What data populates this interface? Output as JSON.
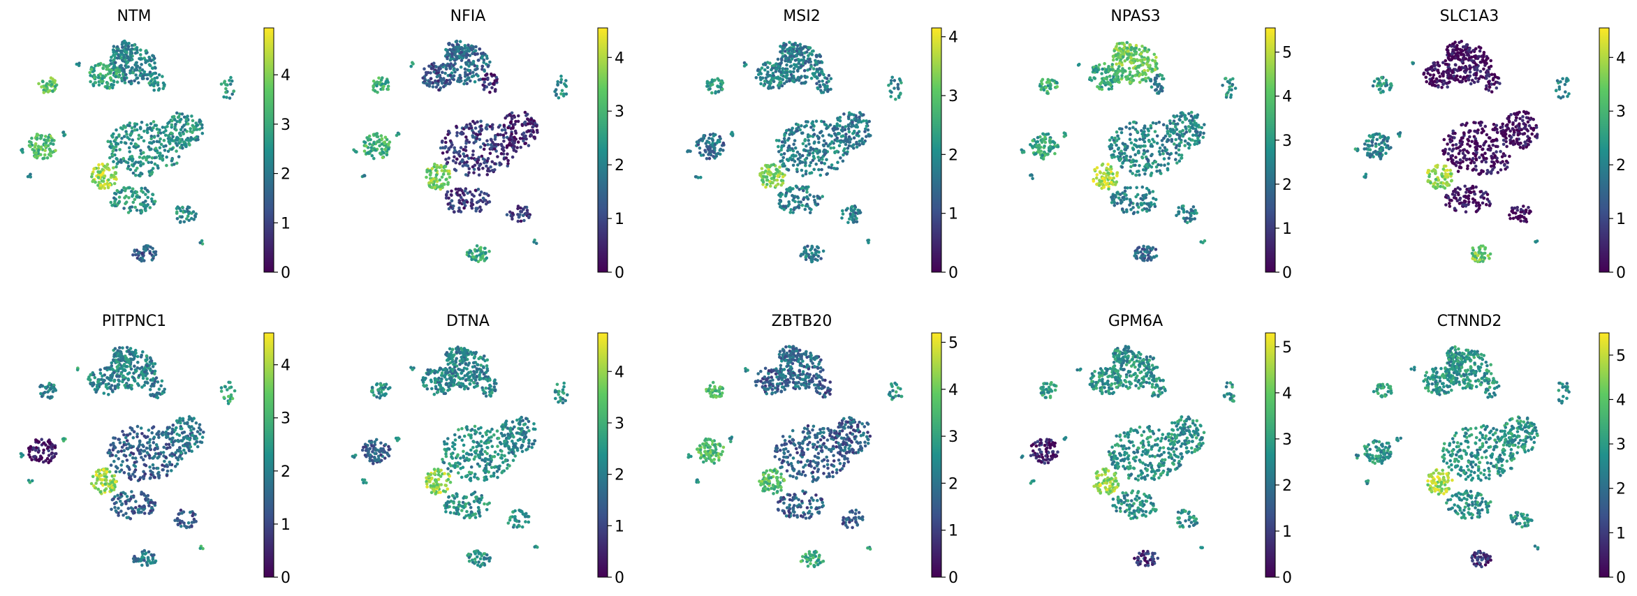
{
  "figure": {
    "panel_count": 10,
    "rows": 2,
    "cols": 5,
    "colormap": [
      "#440154",
      "#3b528b",
      "#21918c",
      "#5ec962",
      "#fde725"
    ]
  },
  "chart_data": [
    {
      "type": "scatter",
      "title": "NTM",
      "colorbar": {
        "min": 0,
        "max": 4.95,
        "ticks": [
          0,
          1,
          2,
          3,
          4
        ]
      },
      "cluster_levels": {
        "big_top": 0.45,
        "top_left": 0.6,
        "top_right": 0.5,
        "island_a": 0.72,
        "island_b": 0.7,
        "island_c": 0.85,
        "main": 0.5,
        "bottom": 0.3,
        "small": 0.5
      }
    },
    {
      "type": "scatter",
      "title": "NFIA",
      "colorbar": {
        "min": 0,
        "max": 4.55,
        "ticks": [
          0,
          1,
          2,
          3,
          4
        ]
      },
      "cluster_levels": {
        "big_top": 0.35,
        "top_left": 0.25,
        "top_right": 0.12,
        "island_a": 0.62,
        "island_b": 0.65,
        "island_c": 0.78,
        "main": 0.18,
        "bottom": 0.6,
        "small": 0.5
      }
    },
    {
      "type": "scatter",
      "title": "MSI2",
      "colorbar": {
        "min": 0,
        "max": 4.15,
        "ticks": [
          0,
          1,
          2,
          3,
          4
        ]
      },
      "cluster_levels": {
        "big_top": 0.42,
        "top_left": 0.45,
        "top_right": 0.4,
        "island_a": 0.5,
        "island_b": 0.35,
        "island_c": 0.8,
        "main": 0.42,
        "bottom": 0.4,
        "small": 0.45
      }
    },
    {
      "type": "scatter",
      "title": "NPAS3",
      "colorbar": {
        "min": 0,
        "max": 5.55,
        "ticks": [
          0,
          1,
          2,
          3,
          4,
          5
        ]
      },
      "cluster_levels": {
        "big_top": 0.75,
        "top_left": 0.6,
        "top_right": 0.45,
        "island_a": 0.62,
        "island_b": 0.58,
        "island_c": 0.88,
        "main": 0.45,
        "bottom": 0.35,
        "small": 0.5
      }
    },
    {
      "type": "scatter",
      "title": "SLC1A3",
      "colorbar": {
        "min": 0,
        "max": 4.55,
        "ticks": [
          0,
          1,
          2,
          3,
          4
        ]
      },
      "cluster_levels": {
        "big_top": 0.02,
        "top_left": 0.03,
        "top_right": 0.02,
        "island_a": 0.5,
        "island_b": 0.45,
        "island_c": 0.82,
        "main": 0.02,
        "bottom": 0.75,
        "small": 0.5
      }
    },
    {
      "type": "scatter",
      "title": "PITPNC1",
      "colorbar": {
        "min": 0,
        "max": 4.6,
        "ticks": [
          0,
          1,
          2,
          3,
          4
        ]
      },
      "cluster_levels": {
        "big_top": 0.45,
        "top_left": 0.45,
        "top_right": 0.4,
        "island_a": 0.45,
        "island_b": 0.05,
        "island_c": 0.85,
        "main": 0.3,
        "bottom": 0.4,
        "small": 0.6
      }
    },
    {
      "type": "scatter",
      "title": "DTNA",
      "colorbar": {
        "min": 0,
        "max": 4.75,
        "ticks": [
          0,
          1,
          2,
          3,
          4
        ]
      },
      "cluster_levels": {
        "big_top": 0.45,
        "top_left": 0.45,
        "top_right": 0.45,
        "island_a": 0.5,
        "island_b": 0.3,
        "island_c": 0.85,
        "main": 0.5,
        "bottom": 0.5,
        "small": 0.5
      }
    },
    {
      "type": "scatter",
      "title": "ZBTB20",
      "colorbar": {
        "min": 0,
        "max": 5.2,
        "ticks": [
          0,
          1,
          2,
          3,
          4,
          5
        ]
      },
      "cluster_levels": {
        "big_top": 0.35,
        "top_left": 0.3,
        "top_right": 0.3,
        "island_a": 0.65,
        "island_b": 0.68,
        "island_c": 0.7,
        "main": 0.3,
        "bottom": 0.62,
        "small": 0.5
      }
    },
    {
      "type": "scatter",
      "title": "GPM6A",
      "colorbar": {
        "min": 0,
        "max": 5.3,
        "ticks": [
          0,
          1,
          2,
          3,
          4,
          5
        ]
      },
      "cluster_levels": {
        "big_top": 0.5,
        "top_left": 0.52,
        "top_right": 0.5,
        "island_a": 0.55,
        "island_b": 0.08,
        "island_c": 0.85,
        "main": 0.5,
        "bottom": 0.15,
        "small": 0.5
      }
    },
    {
      "type": "scatter",
      "title": "CTNND2",
      "colorbar": {
        "min": 0,
        "max": 5.5,
        "ticks": [
          0,
          1,
          2,
          3,
          4,
          5
        ]
      },
      "cluster_levels": {
        "big_top": 0.52,
        "top_left": 0.52,
        "top_right": 0.52,
        "island_a": 0.58,
        "island_b": 0.5,
        "island_c": 0.85,
        "main": 0.5,
        "bottom": 0.15,
        "small": 0.5
      }
    }
  ]
}
